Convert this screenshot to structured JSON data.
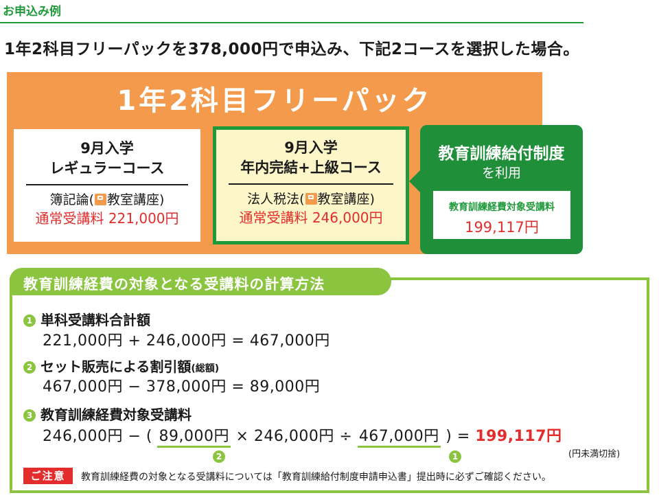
{
  "section_label": "お申込み例",
  "intro": "1年2科目フリーパックを378,000円で申込み、下記2コースを選択した場合。",
  "pack_title": "1年2科目フリーパック",
  "courses": [
    {
      "title_line1": "9月入学",
      "title_line2": "レギュラーコース",
      "subject": "簿記論",
      "paren_open": "(",
      "format": "教室講座",
      "paren_close": ")",
      "fee": "通常受講料 221,000円"
    },
    {
      "title_line1": "9月入学",
      "title_line2": "年内完結+上級コース",
      "subject": "法人税法",
      "paren_open": "(",
      "format": "教室講座",
      "paren_close": ")",
      "fee": "通常受講料 246,000円"
    }
  ],
  "benefit": {
    "title": "教育訓練給付制度",
    "subtitle": "を利用",
    "label": "教育訓練経費対象受講料",
    "value": "199,117円"
  },
  "calc": {
    "heading": "教育訓練経費の対象となる受講料の計算方法",
    "steps": [
      {
        "num": "1",
        "title": "単科受講料合計額",
        "note": "",
        "formula": "221,000円 + 246,000円 = 467,000円"
      },
      {
        "num": "2",
        "title": "セット販売による割引額",
        "note": "(総額)",
        "formula": "467,000円 − 378,000円 = 89,000円"
      },
      {
        "num": "3",
        "title": "教育訓練経費対象受講料",
        "note": "",
        "formula_a": "246,000円 − (",
        "formula_b": "89,000円",
        "formula_c": "× 246,000円 ÷",
        "formula_d": "467,000円",
        "formula_e": ") =",
        "result": "199,117円",
        "ref_b": "2",
        "ref_d": "1",
        "caption": "(円未満切捨)"
      }
    ]
  },
  "notice": {
    "tag": "ご注意",
    "text": "教育訓練経費の対象となる受講料については「教育訓練給付制度申請申込書」提出時に必ずご確認ください。"
  },
  "colors": {
    "orange": "#f39a4c",
    "green": "#1f8f3a",
    "light_green": "#8bc43f",
    "red": "#e32c2c",
    "cream": "#fdf6c9"
  }
}
